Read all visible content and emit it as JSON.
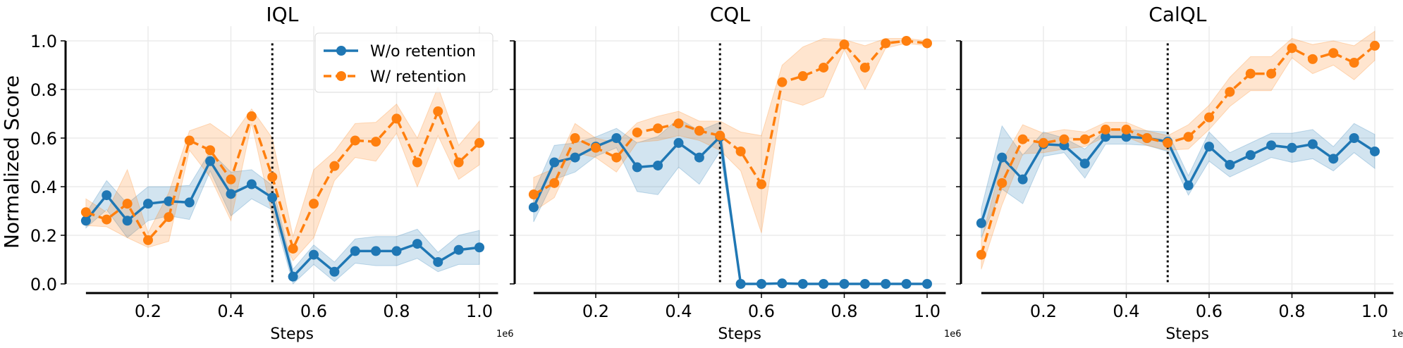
{
  "chart_data": {
    "type": "line",
    "ylabel": "Normalized Score",
    "xlabel": "Steps",
    "x_offset_label": "1e6",
    "x": [
      0.05,
      0.1,
      0.15,
      0.2,
      0.25,
      0.3,
      0.35,
      0.4,
      0.45,
      0.5,
      0.55,
      0.6,
      0.65,
      0.7,
      0.75,
      0.8,
      0.85,
      0.9,
      0.95,
      1.0
    ],
    "xticks": [
      "0.2",
      "0.4",
      "0.6",
      "0.8",
      "1.0"
    ],
    "xtick_values": [
      0.2,
      0.4,
      0.6,
      0.8,
      1.0
    ],
    "yticks": [
      "0.0",
      "0.2",
      "0.4",
      "0.6",
      "0.8",
      "1.0"
    ],
    "ytick_values": [
      0,
      0.2,
      0.4,
      0.6,
      0.8,
      1.0
    ],
    "xlim": [
      0.003,
      1.045
    ],
    "ylim": [
      -0.04,
      1.06
    ],
    "grid": true,
    "vline_x": 0.5,
    "legend": {
      "placement": "top-right",
      "panel": 0
    },
    "series_styles": [
      {
        "name": "W/o retention",
        "color": "#1f77b4",
        "dash": "solid"
      },
      {
        "name": "W/ retention",
        "color": "#ff7f0e",
        "dash": "dashed"
      }
    ],
    "panels": [
      {
        "title": "IQL",
        "series": [
          {
            "name": "W/o retention",
            "values": [
              0.26,
              0.365,
              0.26,
              0.33,
              0.34,
              0.335,
              0.505,
              0.37,
              0.41,
              0.355,
              0.03,
              0.12,
              0.05,
              0.135,
              0.135,
              0.135,
              0.165,
              0.09,
              0.14,
              0.15
            ],
            "band": [
              0.03,
              0.06,
              0.07,
              0.07,
              0.06,
              0.07,
              0.04,
              0.09,
              0.06,
              0.05,
              0.03,
              0.04,
              0.04,
              0.05,
              0.06,
              0.06,
              0.06,
              0.04,
              0.06,
              0.07
            ]
          },
          {
            "name": "W/ retention",
            "values": [
              0.295,
              0.265,
              0.33,
              0.18,
              0.275,
              0.59,
              0.55,
              0.43,
              0.69,
              0.44,
              0.145,
              0.33,
              0.485,
              0.59,
              0.585,
              0.68,
              0.5,
              0.71,
              0.5,
              0.58
            ],
            "band": [
              0.055,
              0.03,
              0.14,
              0.03,
              0.1,
              0.04,
              0.11,
              0.17,
              0.03,
              0.16,
              0.05,
              0.14,
              0.06,
              0.07,
              0.08,
              0.06,
              0.1,
              0.1,
              0.07,
              0.09
            ]
          }
        ]
      },
      {
        "title": "CQL",
        "series": [
          {
            "name": "W/o retention",
            "values": [
              0.315,
              0.5,
              0.52,
              0.565,
              0.6,
              0.48,
              0.487,
              0.58,
              0.52,
              0.605,
              0.0,
              0.0,
              0.002,
              0.0,
              0.0,
              0.0,
              0.0,
              0.0,
              0.0,
              0.0
            ],
            "band": [
              0.06,
              0.07,
              0.06,
              0.04,
              0.04,
              0.1,
              0.12,
              0.1,
              0.11,
              0.06,
              0.002,
              0.002,
              0.002,
              0.002,
              0.002,
              0.002,
              0.002,
              0.002,
              0.002,
              0.002
            ]
          },
          {
            "name": "W/ retention",
            "values": [
              0.368,
              0.415,
              0.6,
              0.56,
              0.52,
              0.623,
              0.64,
              0.66,
              0.63,
              0.61,
              0.545,
              0.41,
              0.83,
              0.855,
              0.89,
              0.985,
              0.89,
              0.99,
              1.0,
              0.99
            ],
            "band": [
              0.07,
              0.06,
              0.06,
              0.04,
              0.06,
              0.04,
              0.05,
              0.05,
              0.04,
              0.06,
              0.08,
              0.2,
              0.07,
              0.12,
              0.12,
              0.02,
              0.09,
              0.02,
              0.01,
              0.01
            ]
          }
        ]
      },
      {
        "title": "CalQL",
        "series": [
          {
            "name": "W/o retention",
            "values": [
              0.25,
              0.52,
              0.43,
              0.575,
              0.57,
              0.495,
              0.605,
              0.605,
              0.6,
              0.585,
              0.405,
              0.565,
              0.49,
              0.53,
              0.57,
              0.56,
              0.575,
              0.515,
              0.6,
              0.545
            ],
            "band": [
              0.06,
              0.13,
              0.1,
              0.05,
              0.03,
              0.06,
              0.03,
              0.03,
              0.03,
              0.04,
              0.04,
              0.06,
              0.05,
              0.05,
              0.05,
              0.06,
              0.06,
              0.05,
              0.06,
              0.07
            ]
          },
          {
            "name": "W/ retention",
            "values": [
              0.12,
              0.415,
              0.595,
              0.58,
              0.595,
              0.595,
              0.635,
              0.635,
              0.6,
              0.58,
              0.605,
              0.685,
              0.79,
              0.865,
              0.865,
              0.97,
              0.925,
              0.95,
              0.91,
              0.98
            ],
            "band": [
              0.06,
              0.09,
              0.06,
              0.04,
              0.04,
              0.03,
              0.03,
              0.03,
              0.03,
              0.03,
              0.05,
              0.05,
              0.06,
              0.07,
              0.07,
              0.04,
              0.06,
              0.05,
              0.07,
              0.06
            ]
          }
        ]
      }
    ]
  }
}
